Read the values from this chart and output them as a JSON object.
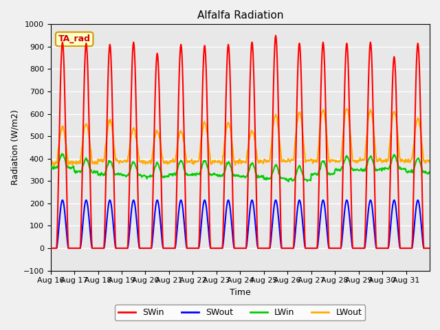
{
  "title": "Alfalfa Radiation",
  "xlabel": "Time",
  "ylabel": "Radiation (W/m2)",
  "ylim": [
    -100,
    1000
  ],
  "x_tick_labels": [
    "Aug 16",
    "Aug 17",
    "Aug 18",
    "Aug 19",
    "Aug 20",
    "Aug 21",
    "Aug 22",
    "Aug 23",
    "Aug 24",
    "Aug 25",
    "Aug 26",
    "Aug 27",
    "Aug 28",
    "Aug 29",
    "Aug 30",
    "Aug 31"
  ],
  "legend_labels": [
    "SWin",
    "SWout",
    "LWin",
    "LWout"
  ],
  "legend_colors": [
    "#ff0000",
    "#0000ff",
    "#00cc00",
    "#ffaa00"
  ],
  "annotation_text": "TA_rad",
  "annotation_color": "#cc0000",
  "annotation_bg": "#ffffcc",
  "annotation_border": "#cc9900",
  "bg_color": "#e8e8e8",
  "grid_color": "#ffffff",
  "line_width": 1.5,
  "num_days": 16,
  "swin_peaks": [
    920,
    915,
    910,
    920,
    870,
    910,
    905,
    910,
    920,
    950,
    915,
    920,
    915,
    920,
    855,
    915
  ],
  "swout_peak": 215,
  "lwin_base": [
    360,
    340,
    330,
    325,
    320,
    330,
    330,
    325,
    320,
    310,
    305,
    330,
    350,
    350,
    355,
    340
  ],
  "lwout_base": [
    380,
    385,
    390,
    388,
    385,
    388,
    385,
    385,
    385,
    390,
    392,
    390,
    390,
    392,
    390,
    390
  ],
  "lwout_peaks": [
    540,
    555,
    570,
    535,
    525,
    520,
    560,
    560,
    525,
    595,
    605,
    615,
    625,
    615,
    610,
    580
  ]
}
